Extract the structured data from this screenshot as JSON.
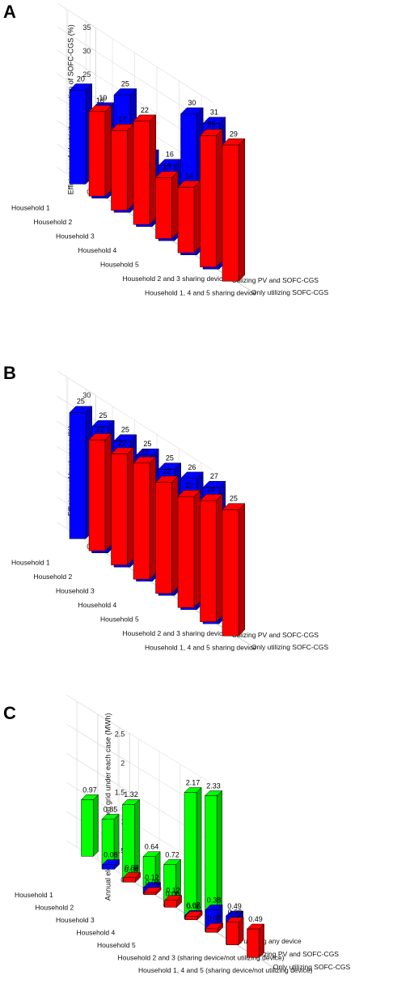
{
  "panels": [
    {
      "letter": "A",
      "chart_data": {
        "type": "bar",
        "ylabel": "Efficiency of electricity generation of SOFC-CGS (%)",
        "ylim": [
          0,
          35
        ],
        "yticks": [
          0,
          5,
          10,
          15,
          20,
          25,
          30,
          35
        ],
        "categories": [
          "Household 1",
          "Household 2",
          "Household 3",
          "Household 4",
          "Household 5",
          "Household 2 and 3 sharing device",
          "Household 1, 4 and 5 sharing device"
        ],
        "series": [
          {
            "name": "Only utilizing SOFC-CGS",
            "color": "#ff0000",
            "values": [
              18,
              17,
              22,
              13,
              14,
              28,
              29
            ]
          },
          {
            "name": "Utilizing PV and SOFC-CGS",
            "color": "#0000ff",
            "values": [
              20,
              19,
              25,
              15,
              16,
              30,
              31
            ]
          }
        ]
      }
    },
    {
      "letter": "B",
      "chart_data": {
        "type": "bar",
        "ylabel": "Efficiency of heat usage (%)",
        "ylim": [
          0,
          30
        ],
        "yticks": [
          0,
          5,
          10,
          15,
          20,
          25,
          30
        ],
        "categories": [
          "Household 1",
          "Household 2",
          "Household 3",
          "Household 4",
          "Household 5",
          "Household 2 and 3 sharing device",
          "Household 1, 4 and 5 sharing device"
        ],
        "series": [
          {
            "name": "Only utilizing SOFC-CGS",
            "color": "#ff0000",
            "values": [
              22,
              22,
              23,
              22,
              22,
              24,
              25
            ]
          },
          {
            "name": "Utilizing PV and SOFC-CGS",
            "color": "#0000ff",
            "values": [
              25,
              25,
              25,
              25,
              25,
              26,
              27
            ]
          }
        ]
      }
    },
    {
      "letter": "C",
      "chart_data": {
        "type": "bar",
        "ylabel": "Annual electricity usage from grid under each case (MWh)",
        "ylim": [
          0,
          2.5
        ],
        "yticks": [
          0,
          0.5,
          1,
          1.5,
          2,
          2.5
        ],
        "categories": [
          "Household 1",
          "Household 2",
          "Household 3",
          "Household 4",
          "Household 5",
          "Household 2 and 3 (sharing device/not utilizing device)",
          "Household 1, 4 and 5 (sharing device/not utilizing device)"
        ],
        "series": [
          {
            "name": "Only utilizing SOFC-CGS",
            "color": "#ff0000",
            "values": [
              0.08,
              0.04,
              0.12,
              0.06,
              0.07,
              0.39,
              0.49
            ]
          },
          {
            "name": "Utilizing PV and SOFC-CGS",
            "color": "#0000ff",
            "values": [
              0.08,
              0.04,
              0.12,
              0.06,
              0.07,
              0.38,
              0.49
            ]
          },
          {
            "name": "Not utilizing any device",
            "color": "#00ff00",
            "values": [
              0.97,
              0.85,
              1.32,
              0.64,
              0.72,
              2.17,
              2.33
            ]
          }
        ]
      }
    }
  ]
}
